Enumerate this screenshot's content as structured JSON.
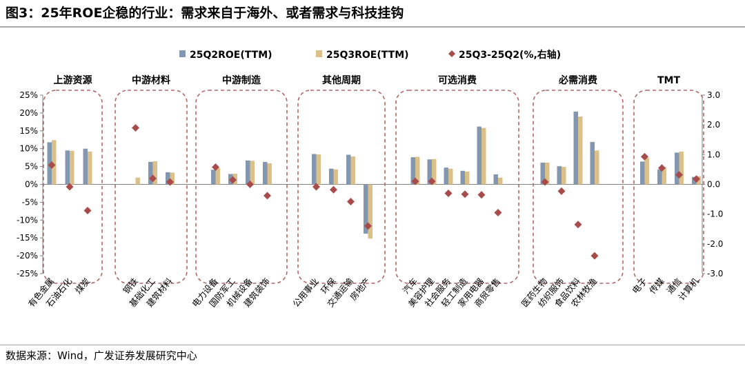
{
  "header": {
    "title": "图3：25年ROE企稳的行业：需求来自于海外、或者需求与科技挂钩"
  },
  "footer": {
    "source": "数据来源：Wind，广发证券发展研究中心"
  },
  "colors": {
    "q2_bar": "#8497b0",
    "q3_bar": "#dcc08a",
    "diff_marker": "#a84b4b",
    "group_box": "#b56565",
    "axis": "#7f7f7f"
  },
  "chart_data": {
    "type": "bar",
    "title": "25年ROE企稳的行业：需求来自于海外、或者需求与科技挂钩",
    "left_axis": {
      "ylim": [
        -25,
        25
      ],
      "ticks": [
        25,
        20,
        15,
        10,
        5,
        0,
        -5,
        -10,
        -15,
        -20,
        -25
      ],
      "tick_labels": [
        "25%",
        "20%",
        "15%",
        "10%",
        "5%",
        "0%",
        "-5%",
        "-10%",
        "-15%",
        "-20%",
        "-25%"
      ]
    },
    "right_axis": {
      "ylim": [
        -3.0,
        3.0
      ],
      "ticks": [
        3,
        2,
        1,
        0,
        -1,
        -2,
        -3
      ],
      "tick_labels": [
        "3.0",
        "2.0",
        "1.0",
        "0.0",
        "-1.0",
        "-2.0",
        "-3.0"
      ]
    },
    "legend": [
      {
        "name": "25Q2ROE(TTM)",
        "kind": "bar"
      },
      {
        "name": "25Q3ROE(TTM)",
        "kind": "bar"
      },
      {
        "name": "25Q3-25Q2(%,右轴)",
        "kind": "diamond"
      }
    ],
    "groups": [
      {
        "name": "上游资源",
        "categories": [
          "有色金属",
          "石油石化",
          "煤炭"
        ]
      },
      {
        "name": "中游材料",
        "categories": [
          "钢铁",
          "基础化工",
          "建筑材料"
        ]
      },
      {
        "name": "中游制造",
        "categories": [
          "电力设备",
          "国防军工",
          "机械设备",
          "建筑装饰"
        ]
      },
      {
        "name": "其他周期",
        "categories": [
          "公用事业",
          "环保",
          "交通运输",
          "房地产"
        ]
      },
      {
        "name": "可选消费",
        "categories": [
          "汽车",
          "美容护理",
          "社会服务",
          "轻工制造",
          "家用电器",
          "商贸零售"
        ]
      },
      {
        "name": "必需消费",
        "categories": [
          "医药生物",
          "纺织服饰",
          "食品饮料",
          "农林牧渔"
        ]
      },
      {
        "name": "TMT",
        "categories": [
          "电子",
          "传媒",
          "通信",
          "计算机"
        ]
      }
    ],
    "series": [
      {
        "name": "25Q2ROE(TTM)",
        "axis": "left",
        "values": [
          11.8,
          9.5,
          10.0,
          0.0,
          6.3,
          3.4,
          4.1,
          2.9,
          6.7,
          6.3,
          8.5,
          4.4,
          8.3,
          -13.8,
          7.6,
          7.0,
          4.7,
          3.8,
          16.2,
          2.8,
          6.1,
          5.1,
          20.4,
          11.9,
          6.4,
          4.2,
          8.9,
          2.1
        ]
      },
      {
        "name": "25Q3ROE(TTM)",
        "axis": "left",
        "values": [
          12.4,
          9.4,
          9.2,
          1.9,
          6.5,
          3.3,
          4.6,
          3.0,
          6.6,
          5.9,
          8.4,
          4.2,
          7.8,
          -15.2,
          7.7,
          7.1,
          4.4,
          3.6,
          15.8,
          1.9,
          6.1,
          4.9,
          19.0,
          9.5,
          7.4,
          4.8,
          9.2,
          2.3
        ]
      },
      {
        "name": "25Q3-25Q2(%,右轴)",
        "axis": "right",
        "values": [
          0.65,
          -0.08,
          -0.88,
          1.9,
          0.2,
          0.08,
          0.58,
          0.15,
          0.0,
          -0.38,
          -0.08,
          -0.18,
          -0.58,
          -1.4,
          0.1,
          0.1,
          -0.3,
          -0.33,
          -0.35,
          -0.95,
          0.08,
          -0.23,
          -1.35,
          -2.4,
          0.93,
          0.55,
          0.32,
          0.18
        ]
      }
    ]
  }
}
